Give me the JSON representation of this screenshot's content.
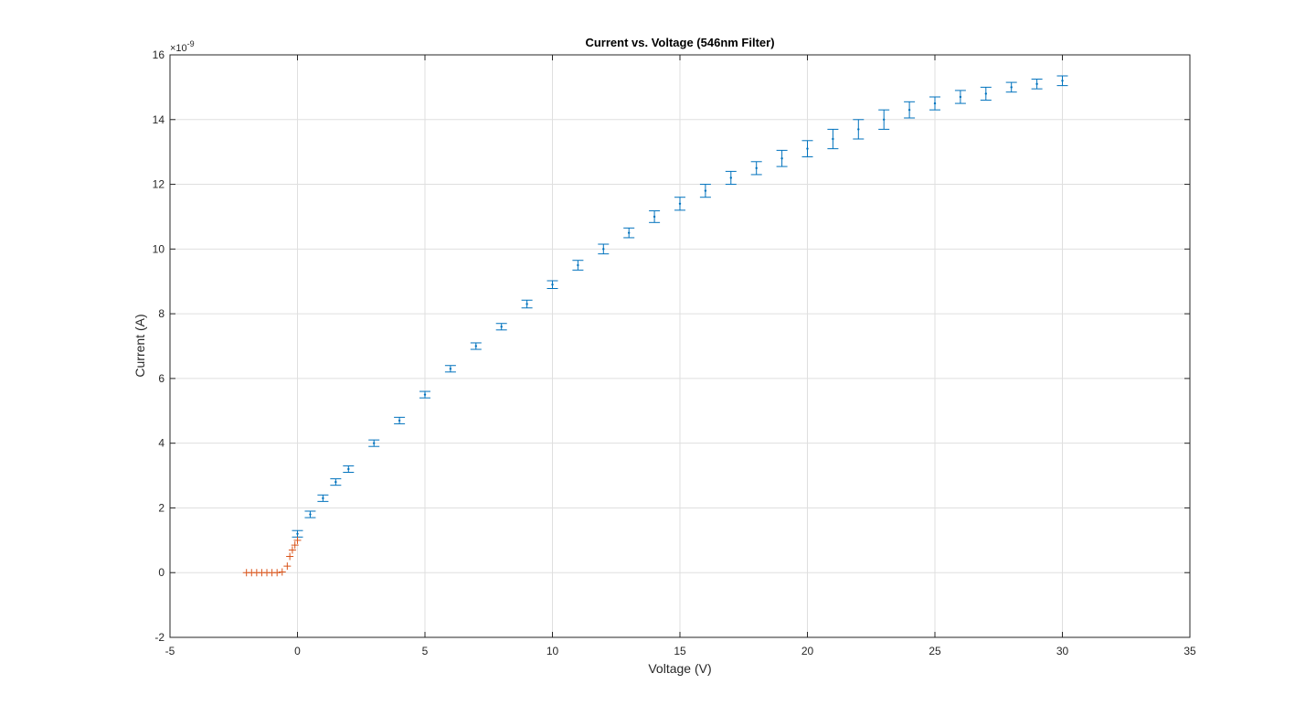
{
  "chart_data": {
    "type": "scatter",
    "title": "Current vs. Voltage (546nm Filter)",
    "xlabel": "Voltage (V)",
    "ylabel": "Current (A)",
    "y_exponent_label": "×10",
    "y_exponent_power": "-9",
    "xlim": [
      -5,
      35
    ],
    "ylim": [
      -2,
      16
    ],
    "x_ticks": [
      "-5",
      "0",
      "5",
      "10",
      "15",
      "20",
      "25",
      "30",
      "35"
    ],
    "y_ticks": [
      "-2",
      "0",
      "2",
      "4",
      "6",
      "8",
      "10",
      "12",
      "14",
      "16"
    ],
    "grid": true,
    "legend": "none",
    "series": [
      {
        "marker": "error-bar",
        "color": "#0072BD",
        "x": [
          0,
          0.5,
          1,
          1.5,
          2,
          3,
          4,
          5,
          6,
          7,
          8,
          9,
          10,
          11,
          12,
          13,
          14,
          15,
          16,
          17,
          18,
          19,
          20,
          21,
          22,
          23,
          24,
          25,
          26,
          27,
          28,
          29,
          30
        ],
        "y": [
          1.2,
          1.8,
          2.3,
          2.8,
          3.2,
          4.0,
          4.7,
          5.5,
          6.3,
          7.0,
          7.6,
          8.3,
          8.9,
          9.5,
          10.0,
          10.5,
          11.0,
          11.4,
          11.8,
          12.2,
          12.5,
          12.8,
          13.1,
          13.4,
          13.7,
          14.0,
          14.3,
          14.5,
          14.7,
          14.8,
          15.0,
          15.1,
          15.2
        ],
        "err": [
          0.1,
          0.1,
          0.1,
          0.1,
          0.1,
          0.1,
          0.1,
          0.1,
          0.1,
          0.1,
          0.1,
          0.12,
          0.12,
          0.15,
          0.15,
          0.15,
          0.18,
          0.2,
          0.2,
          0.2,
          0.2,
          0.25,
          0.25,
          0.3,
          0.3,
          0.3,
          0.25,
          0.2,
          0.2,
          0.2,
          0.15,
          0.15,
          0.15
        ]
      },
      {
        "marker": "plus",
        "color": "#D95319",
        "x": [
          -2.0,
          -1.8,
          -1.6,
          -1.4,
          -1.2,
          -1.0,
          -0.8,
          -0.6,
          -0.4,
          -0.3,
          -0.2,
          -0.1,
          0.0
        ],
        "y": [
          0,
          0,
          0,
          0,
          0,
          0,
          0,
          0.02,
          0.2,
          0.5,
          0.7,
          0.85,
          1.0
        ]
      }
    ]
  }
}
